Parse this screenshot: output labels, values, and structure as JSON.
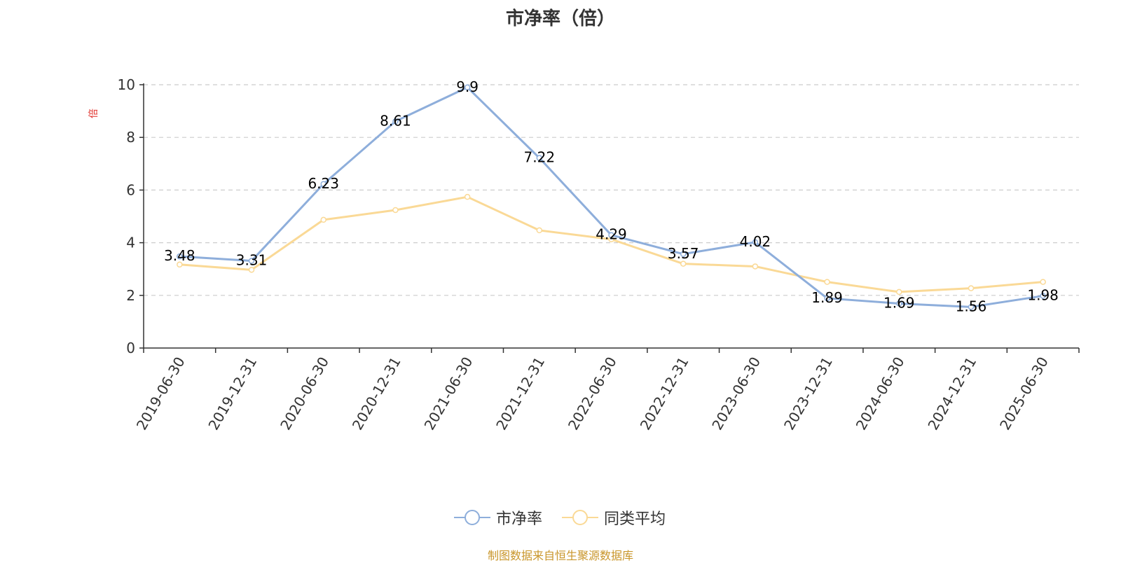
{
  "title": "市净率（倍）",
  "source": "制图数据来自恒生聚源数据库",
  "chart_data": {
    "type": "line",
    "title": "市净率（倍）",
    "ylabel": "倍",
    "ylim": [
      0,
      10
    ],
    "yticks": [
      0,
      2,
      4,
      6,
      8,
      10
    ],
    "grid": true,
    "legend_position": "bottom",
    "categories": [
      "2019-06-30",
      "2019-12-31",
      "2020-06-30",
      "2020-12-31",
      "2021-06-30",
      "2021-12-31",
      "2022-06-30",
      "2022-12-31",
      "2023-06-30",
      "2023-12-31",
      "2024-06-30",
      "2024-12-31",
      "2025-06-30"
    ],
    "series": [
      {
        "name": "市净率",
        "color": "#8eaedb",
        "labels": true,
        "values": [
          3.48,
          3.31,
          6.23,
          8.61,
          9.9,
          7.22,
          4.29,
          3.57,
          4.02,
          1.89,
          1.69,
          1.56,
          1.98
        ]
      },
      {
        "name": "同类平均",
        "color": "#fad996",
        "labels": false,
        "values": [
          3.17,
          2.97,
          4.87,
          5.24,
          5.74,
          4.47,
          4.13,
          3.2,
          3.1,
          2.51,
          2.13,
          2.27,
          2.51
        ]
      }
    ]
  }
}
